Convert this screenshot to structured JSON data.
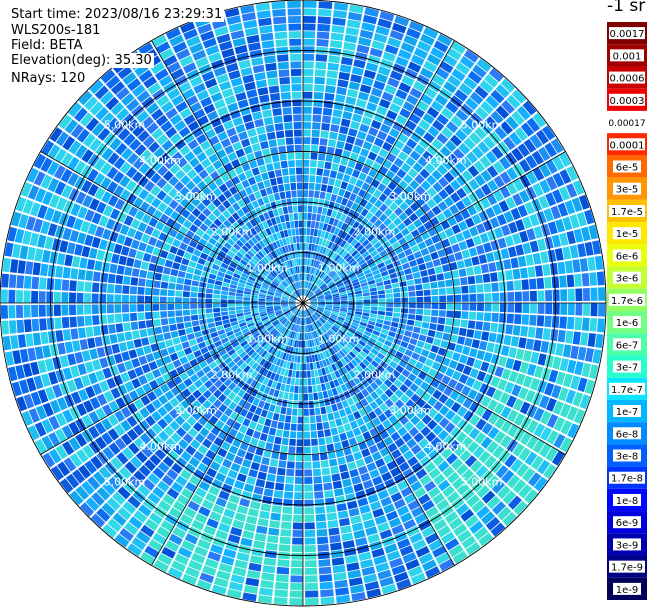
{
  "header": {
    "start_time": "Start time: 2023/08/16 23:29:31",
    "instrument": "WLS200s-181",
    "field": "Field: BETA",
    "elevation": "Elevation(deg): 35.30",
    "nrays": "NRays: 120"
  },
  "colorbar": {
    "title": "-1 sr",
    "labels": [
      "0.0017",
      "0.001",
      "0.0006",
      "0.0003",
      "0.00017",
      "0.0001",
      "6e-5",
      "3e-5",
      "1.7e-5",
      "1e-5",
      "6e-6",
      "3e-6",
      "1.7e-6",
      "1e-6",
      "6e-7",
      "3e-7",
      "1.7e-7",
      "1e-7",
      "6e-8",
      "3e-8",
      "1.7e-8",
      "1e-8",
      "6e-9",
      "3e-9",
      "1.7e-9",
      "1e-9"
    ],
    "colors": [
      "#800000",
      "#a00000",
      "#c80000",
      "#f00000",
      "#ffffff",
      "#ff2a00",
      "#ff6a00",
      "#ff9500",
      "#ffc000",
      "#ffe800",
      "#eaff0d",
      "#c4ff33",
      "#94ff63",
      "#73ff84",
      "#4dffaa",
      "#29ffcd",
      "#08e6ff",
      "#00b8ff",
      "#008cff",
      "#0060ff",
      "#0034ff",
      "#0008ff",
      "#0000dc",
      "#0000b0",
      "#000084",
      "#00005a"
    ]
  },
  "chart_data": {
    "type": "heatmap",
    "projection": "polar (PPI scan)",
    "range_rings": [
      "1.00km",
      "2.00km",
      "3.00km",
      "4.00km",
      "5.00km"
    ],
    "ring_values_km": [
      1,
      2,
      3,
      4,
      5
    ],
    "max_range_km": 6.0,
    "n_rays": 120,
    "field": "BETA",
    "units": "-1 sr",
    "dominant_level": "1e-7 to 6e-8",
    "elevation_deg": 35.3
  }
}
